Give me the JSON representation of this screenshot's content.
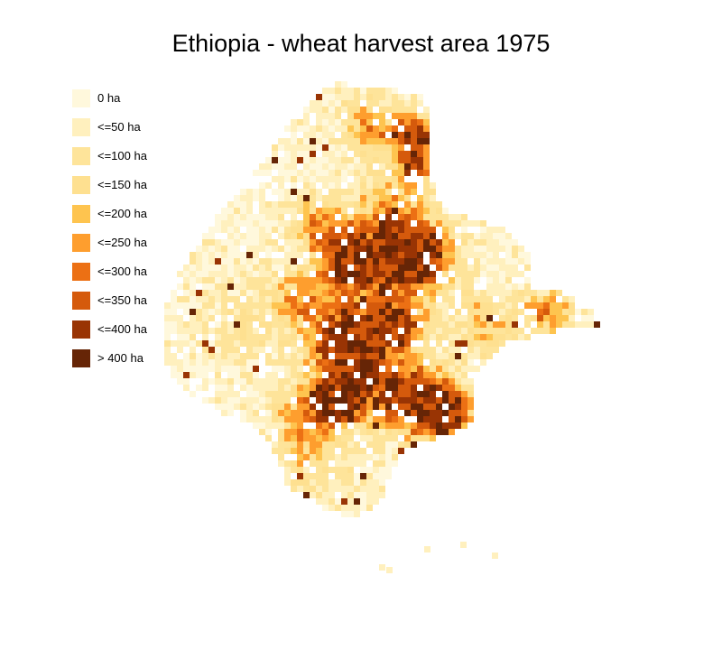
{
  "map": {
    "title": "Ethiopia - wheat harvest area 1975",
    "legend": [
      {
        "label": "0 ha",
        "color": "#FFF8DC"
      },
      {
        "label": "<=50 ha",
        "color": "#FFF0BE"
      },
      {
        "label": "<=100 ha",
        "color": "#FEE49A"
      },
      {
        "label": "<=150 ha",
        "color": "#FEE090"
      },
      {
        "label": "<=200 ha",
        "color": "#FEC44F"
      },
      {
        "label": "<=250 ha",
        "color": "#FE9E2E"
      },
      {
        "label": "<=300 ha",
        "color": "#EC7014"
      },
      {
        "label": "<=350 ha",
        "color": "#D55A0C"
      },
      {
        "label": "<=400 ha",
        "color": "#993404"
      },
      {
        "label": "> 400 ha",
        "color": "#662506"
      }
    ]
  }
}
